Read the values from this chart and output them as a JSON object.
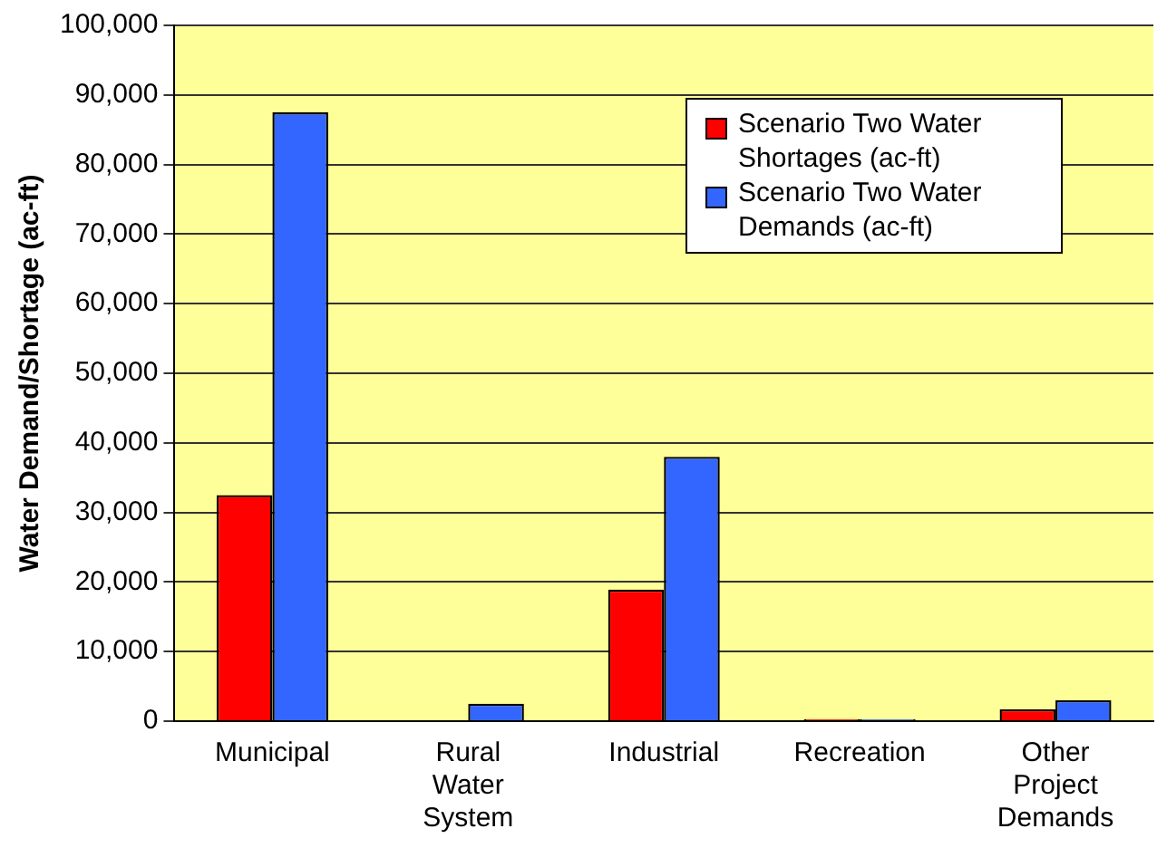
{
  "chart_data": {
    "type": "bar",
    "ylabel": "Water Demand/Shortage (ac-ft)",
    "categories": [
      "Municipal",
      "Rural Water System",
      "Industrial",
      "Recreation",
      "Other Project Demands"
    ],
    "series": [
      {
        "name": "Scenario Two Water Shortages (ac-ft)",
        "color": "#ff0000",
        "values": [
          32500,
          0,
          18900,
          300,
          1700
        ]
      },
      {
        "name": "Scenario Two Water Demands (ac-ft)",
        "color": "#3366ff",
        "values": [
          87500,
          2500,
          38000,
          300,
          3000
        ]
      }
    ],
    "ylim": [
      0,
      100000
    ],
    "yticks": [
      0,
      {
        "value": 10000,
        "label": "10,000"
      },
      {
        "value": 20000,
        "label": "20,000"
      },
      {
        "value": 30000,
        "label": "30,000"
      },
      {
        "value": 40000,
        "label": "40,000"
      },
      {
        "value": 50000,
        "label": "50,000"
      },
      {
        "value": 60000,
        "label": "60,000"
      },
      {
        "value": 70000,
        "label": "70,000"
      },
      {
        "value": 80000,
        "label": "80,000"
      },
      {
        "value": 90000,
        "label": "90,000"
      },
      {
        "value": 100000,
        "label": "100,000"
      }
    ],
    "grid": "y",
    "legend": "top right"
  }
}
